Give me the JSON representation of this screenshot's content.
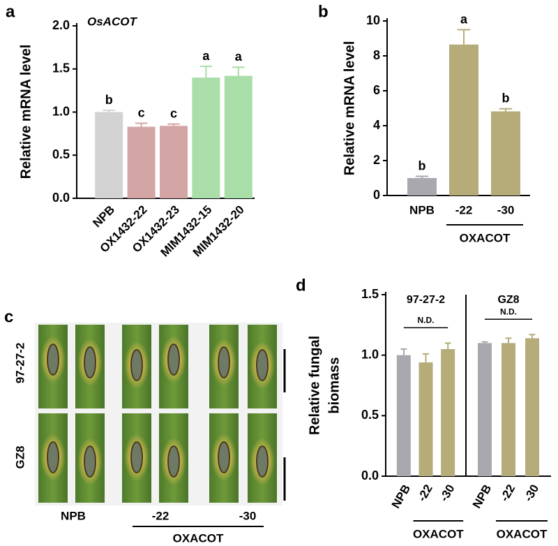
{
  "chart_data": [
    {
      "type": "bar",
      "panel": "a",
      "title": "OsACOT",
      "ylabel": "Relative mRNA level",
      "categories": [
        "NPB",
        "OX1432-22",
        "OX1432-23",
        "MIM1432-15",
        "MIM1432-20"
      ],
      "values": [
        1.0,
        0.83,
        0.84,
        1.4,
        1.42
      ],
      "errors": [
        0.02,
        0.04,
        0.02,
        0.13,
        0.1
      ],
      "annotations": [
        "b",
        "c",
        "c",
        "a",
        "a"
      ],
      "colors": [
        "#d3d3d3",
        "#d4a5a5",
        "#d4a5a5",
        "#a9dea9",
        "#a9dea9"
      ],
      "ylim": [
        0,
        2.0
      ],
      "yticks": [
        {
          "value": 0,
          "label": "0.0"
        },
        0.5,
        {
          "value": 1,
          "label": "1.0"
        },
        1.5,
        {
          "value": 2,
          "label": "2.0"
        }
      ]
    },
    {
      "type": "bar",
      "panel": "b",
      "ylabel": "Relative mRNA level",
      "categories": [
        "NPB",
        "-22",
        "-30"
      ],
      "values": [
        1.0,
        8.65,
        4.82
      ],
      "errors": [
        0.1,
        0.85,
        0.15
      ],
      "annotations": [
        "b",
        "a",
        "b"
      ],
      "colors": [
        "#a8a8ae",
        "#b6ac7a",
        "#b6ac7a"
      ],
      "group_label": "OXACOT",
      "ylim": [
        0,
        10
      ],
      "yticks": [
        0,
        2,
        4,
        6,
        8,
        10
      ]
    },
    {
      "type": "facet-bar",
      "panel": "d",
      "ylabel_lines": [
        "Relative fungal",
        "biomass"
      ],
      "colors": [
        "#a8a8ae",
        "#b6ac7a",
        "#b6ac7a"
      ],
      "ylim": [
        0,
        1.5
      ],
      "yticks": [
        {
          "value": 0,
          "label": "0.0"
        },
        0.5,
        {
          "value": 1,
          "label": "1.0"
        },
        1.5
      ],
      "facets": [
        {
          "title": "97-27-2",
          "categories": [
            "NPB",
            "-22",
            "-30"
          ],
          "values": [
            1.0,
            0.94,
            1.05
          ],
          "errors": [
            0.05,
            0.07,
            0.05
          ],
          "annotation": "N.D.",
          "group_label": "OXACOT"
        },
        {
          "title": "GZ8",
          "categories": [
            "NPB",
            "-22",
            "-30"
          ],
          "values": [
            1.1,
            1.1,
            1.14
          ],
          "errors": [
            0.01,
            0.04,
            0.03
          ],
          "annotation": "N.D.",
          "group_label": "OXACOT"
        }
      ]
    }
  ],
  "image_panel": {
    "panel": "c",
    "row_labels": [
      "97-27-2",
      "GZ8"
    ],
    "column_labels": [
      "NPB",
      "-22",
      "-30"
    ],
    "group_label": "OXACOT"
  }
}
